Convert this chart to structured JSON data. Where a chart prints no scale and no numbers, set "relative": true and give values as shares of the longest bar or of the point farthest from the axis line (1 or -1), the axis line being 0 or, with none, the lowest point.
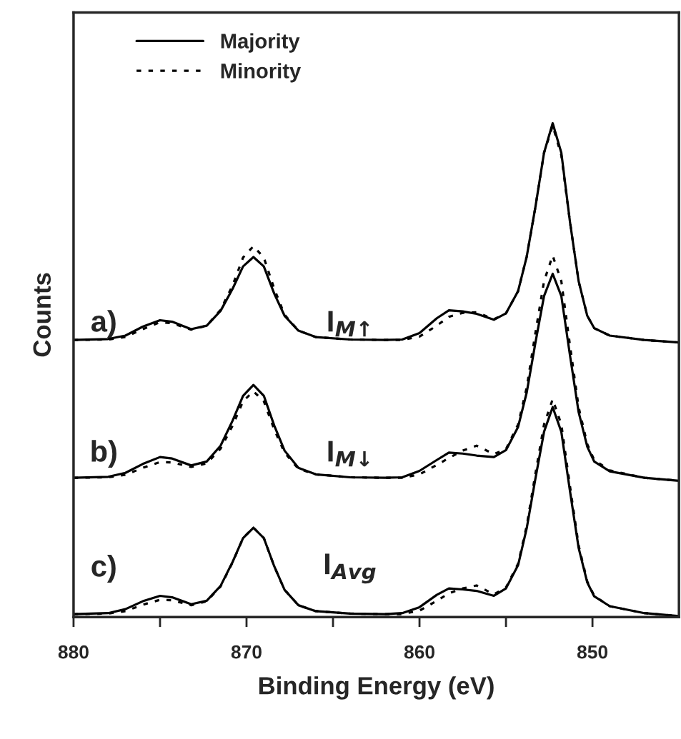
{
  "chart_data": {
    "type": "line",
    "xlabel": "Binding Energy (eV)",
    "ylabel": "Counts",
    "relative": true,
    "x": [
      880,
      878,
      877,
      876,
      875,
      874.3,
      873.2,
      872.3,
      871.5,
      870.8,
      870.2,
      869.6,
      869,
      868.4,
      867.8,
      867,
      866,
      864,
      862,
      861,
      860,
      859,
      858.3,
      857.5,
      856.7,
      855.7,
      855,
      854.3,
      853.8,
      853.3,
      852.8,
      852.3,
      851.8,
      851.3,
      850.8,
      850.3,
      849.9,
      849,
      847,
      845
    ],
    "xlim": [
      880,
      845
    ],
    "xticks": [
      880,
      {
        "value": 875,
        "label": null
      },
      870,
      {
        "value": 865,
        "label": null
      },
      860,
      {
        "value": 855,
        "label": null
      },
      850
    ],
    "series": [
      {
        "name": "Majority",
        "color": "#000000",
        "line_style": "solid",
        "values": [
          0.561,
          0.563,
          0.57,
          0.588,
          0.601,
          0.598,
          0.583,
          0.59,
          0.62,
          0.665,
          0.71,
          0.729,
          0.71,
          0.655,
          0.61,
          0.58,
          0.567,
          0.562,
          0.561,
          0.562,
          0.575,
          0.605,
          0.621,
          0.619,
          0.614,
          0.602,
          0.615,
          0.66,
          0.73,
          0.83,
          0.94,
          1.0,
          0.94,
          0.8,
          0.68,
          0.61,
          0.585,
          0.57,
          0.561,
          0.556
        ]
      },
      {
        "name": "Minority",
        "color": "#000000",
        "line_style": "dotted",
        "values": [
          0.561,
          0.562,
          0.567,
          0.583,
          0.597,
          0.595,
          0.582,
          0.59,
          0.622,
          0.672,
          0.728,
          0.751,
          0.728,
          0.665,
          0.612,
          0.58,
          0.567,
          0.562,
          0.561,
          0.561,
          0.568,
          0.59,
          0.608,
          0.616,
          0.617,
          0.603,
          0.615,
          0.66,
          0.73,
          0.83,
          0.94,
          0.995,
          0.935,
          0.8,
          0.68,
          0.61,
          0.585,
          0.57,
          0.561,
          0.556
        ]
      },
      {
        "color": "#000000",
        "line_style": "solid",
        "values": [
          0.282,
          0.284,
          0.292,
          0.31,
          0.324,
          0.321,
          0.307,
          0.315,
          0.347,
          0.398,
          0.448,
          0.47,
          0.448,
          0.388,
          0.337,
          0.302,
          0.289,
          0.283,
          0.282,
          0.283,
          0.296,
          0.318,
          0.333,
          0.331,
          0.327,
          0.324,
          0.338,
          0.385,
          0.455,
          0.555,
          0.65,
          0.695,
          0.65,
          0.53,
          0.415,
          0.345,
          0.315,
          0.295,
          0.282,
          0.276
        ]
      },
      {
        "color": "#000000",
        "line_style": "dotted",
        "values": [
          0.282,
          0.283,
          0.288,
          0.302,
          0.314,
          0.313,
          0.304,
          0.311,
          0.341,
          0.388,
          0.437,
          0.457,
          0.437,
          0.38,
          0.333,
          0.3,
          0.289,
          0.283,
          0.282,
          0.282,
          0.289,
          0.308,
          0.322,
          0.337,
          0.347,
          0.33,
          0.34,
          0.39,
          0.465,
          0.575,
          0.68,
          0.732,
          0.68,
          0.55,
          0.425,
          0.35,
          0.318,
          0.297,
          0.282,
          0.276
        ]
      },
      {
        "color": "#000000",
        "line_style": "solid",
        "values": [
          0.006,
          0.008,
          0.016,
          0.032,
          0.043,
          0.04,
          0.026,
          0.033,
          0.063,
          0.112,
          0.16,
          0.181,
          0.16,
          0.103,
          0.055,
          0.024,
          0.012,
          0.007,
          0.006,
          0.008,
          0.02,
          0.045,
          0.058,
          0.056,
          0.053,
          0.043,
          0.058,
          0.105,
          0.18,
          0.28,
          0.375,
          0.425,
          0.375,
          0.255,
          0.14,
          0.07,
          0.042,
          0.022,
          0.008,
          0.002
        ]
      },
      {
        "color": "#000000",
        "line_style": "dotted",
        "values": [
          0.006,
          0.007,
          0.012,
          0.025,
          0.035,
          0.034,
          0.024,
          0.032,
          0.062,
          0.111,
          0.16,
          0.181,
          0.16,
          0.103,
          0.055,
          0.024,
          0.012,
          0.007,
          0.006,
          0.006,
          0.013,
          0.033,
          0.048,
          0.058,
          0.064,
          0.046,
          0.06,
          0.108,
          0.185,
          0.29,
          0.39,
          0.441,
          0.39,
          0.265,
          0.145,
          0.072,
          0.043,
          0.022,
          0.008,
          0.002
        ]
      }
    ],
    "annotations": [
      "a)",
      "b)",
      "c)",
      "I$_{M↑}$",
      "I$_{M↓}$",
      "I$_{Avg}$"
    ],
    "legend": "top left",
    "grid": false,
    "marker": "none"
  }
}
